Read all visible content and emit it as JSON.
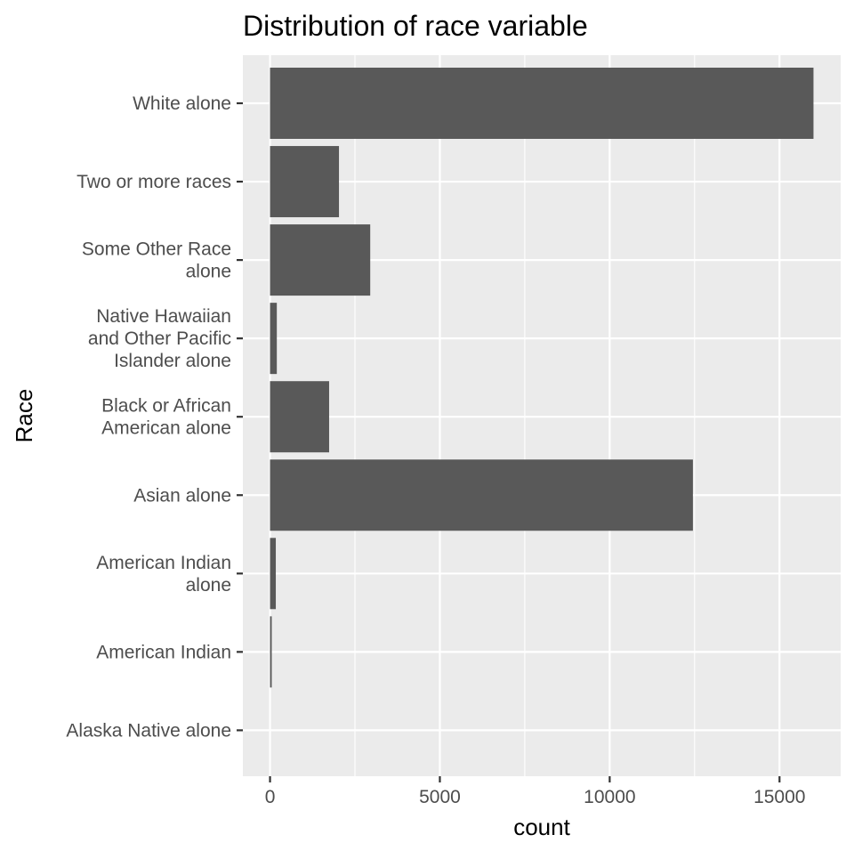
{
  "chart_data": {
    "type": "bar",
    "orientation": "horizontal",
    "title": "Distribution of race variable",
    "xlabel": "count",
    "ylabel": "Race",
    "categories": [
      [
        "White alone"
      ],
      [
        "Two or more races"
      ],
      [
        "Some Other Race",
        "alone"
      ],
      [
        "Native Hawaiian",
        "and Other Pacific",
        "Islander alone"
      ],
      [
        "Black or African",
        "American alone"
      ],
      [
        "Asian alone"
      ],
      [
        "American Indian",
        "alone"
      ],
      [
        "American Indian"
      ],
      [
        "Alaska Native alone"
      ]
    ],
    "values": [
      16000,
      2030,
      2950,
      200,
      1740,
      12450,
      170,
      50,
      0
    ],
    "xlim": [
      -800,
      16800
    ],
    "xticks": [
      0,
      5000,
      10000,
      15000
    ],
    "xtick_labels": [
      "0",
      "5000",
      "10000",
      "15000"
    ],
    "grid": true,
    "colors": {
      "panel": "#ebebeb",
      "grid": "#ffffff",
      "bar": "#595959",
      "text": "#000000",
      "tick_text": "#4d4d4d",
      "tick": "#333333"
    }
  }
}
